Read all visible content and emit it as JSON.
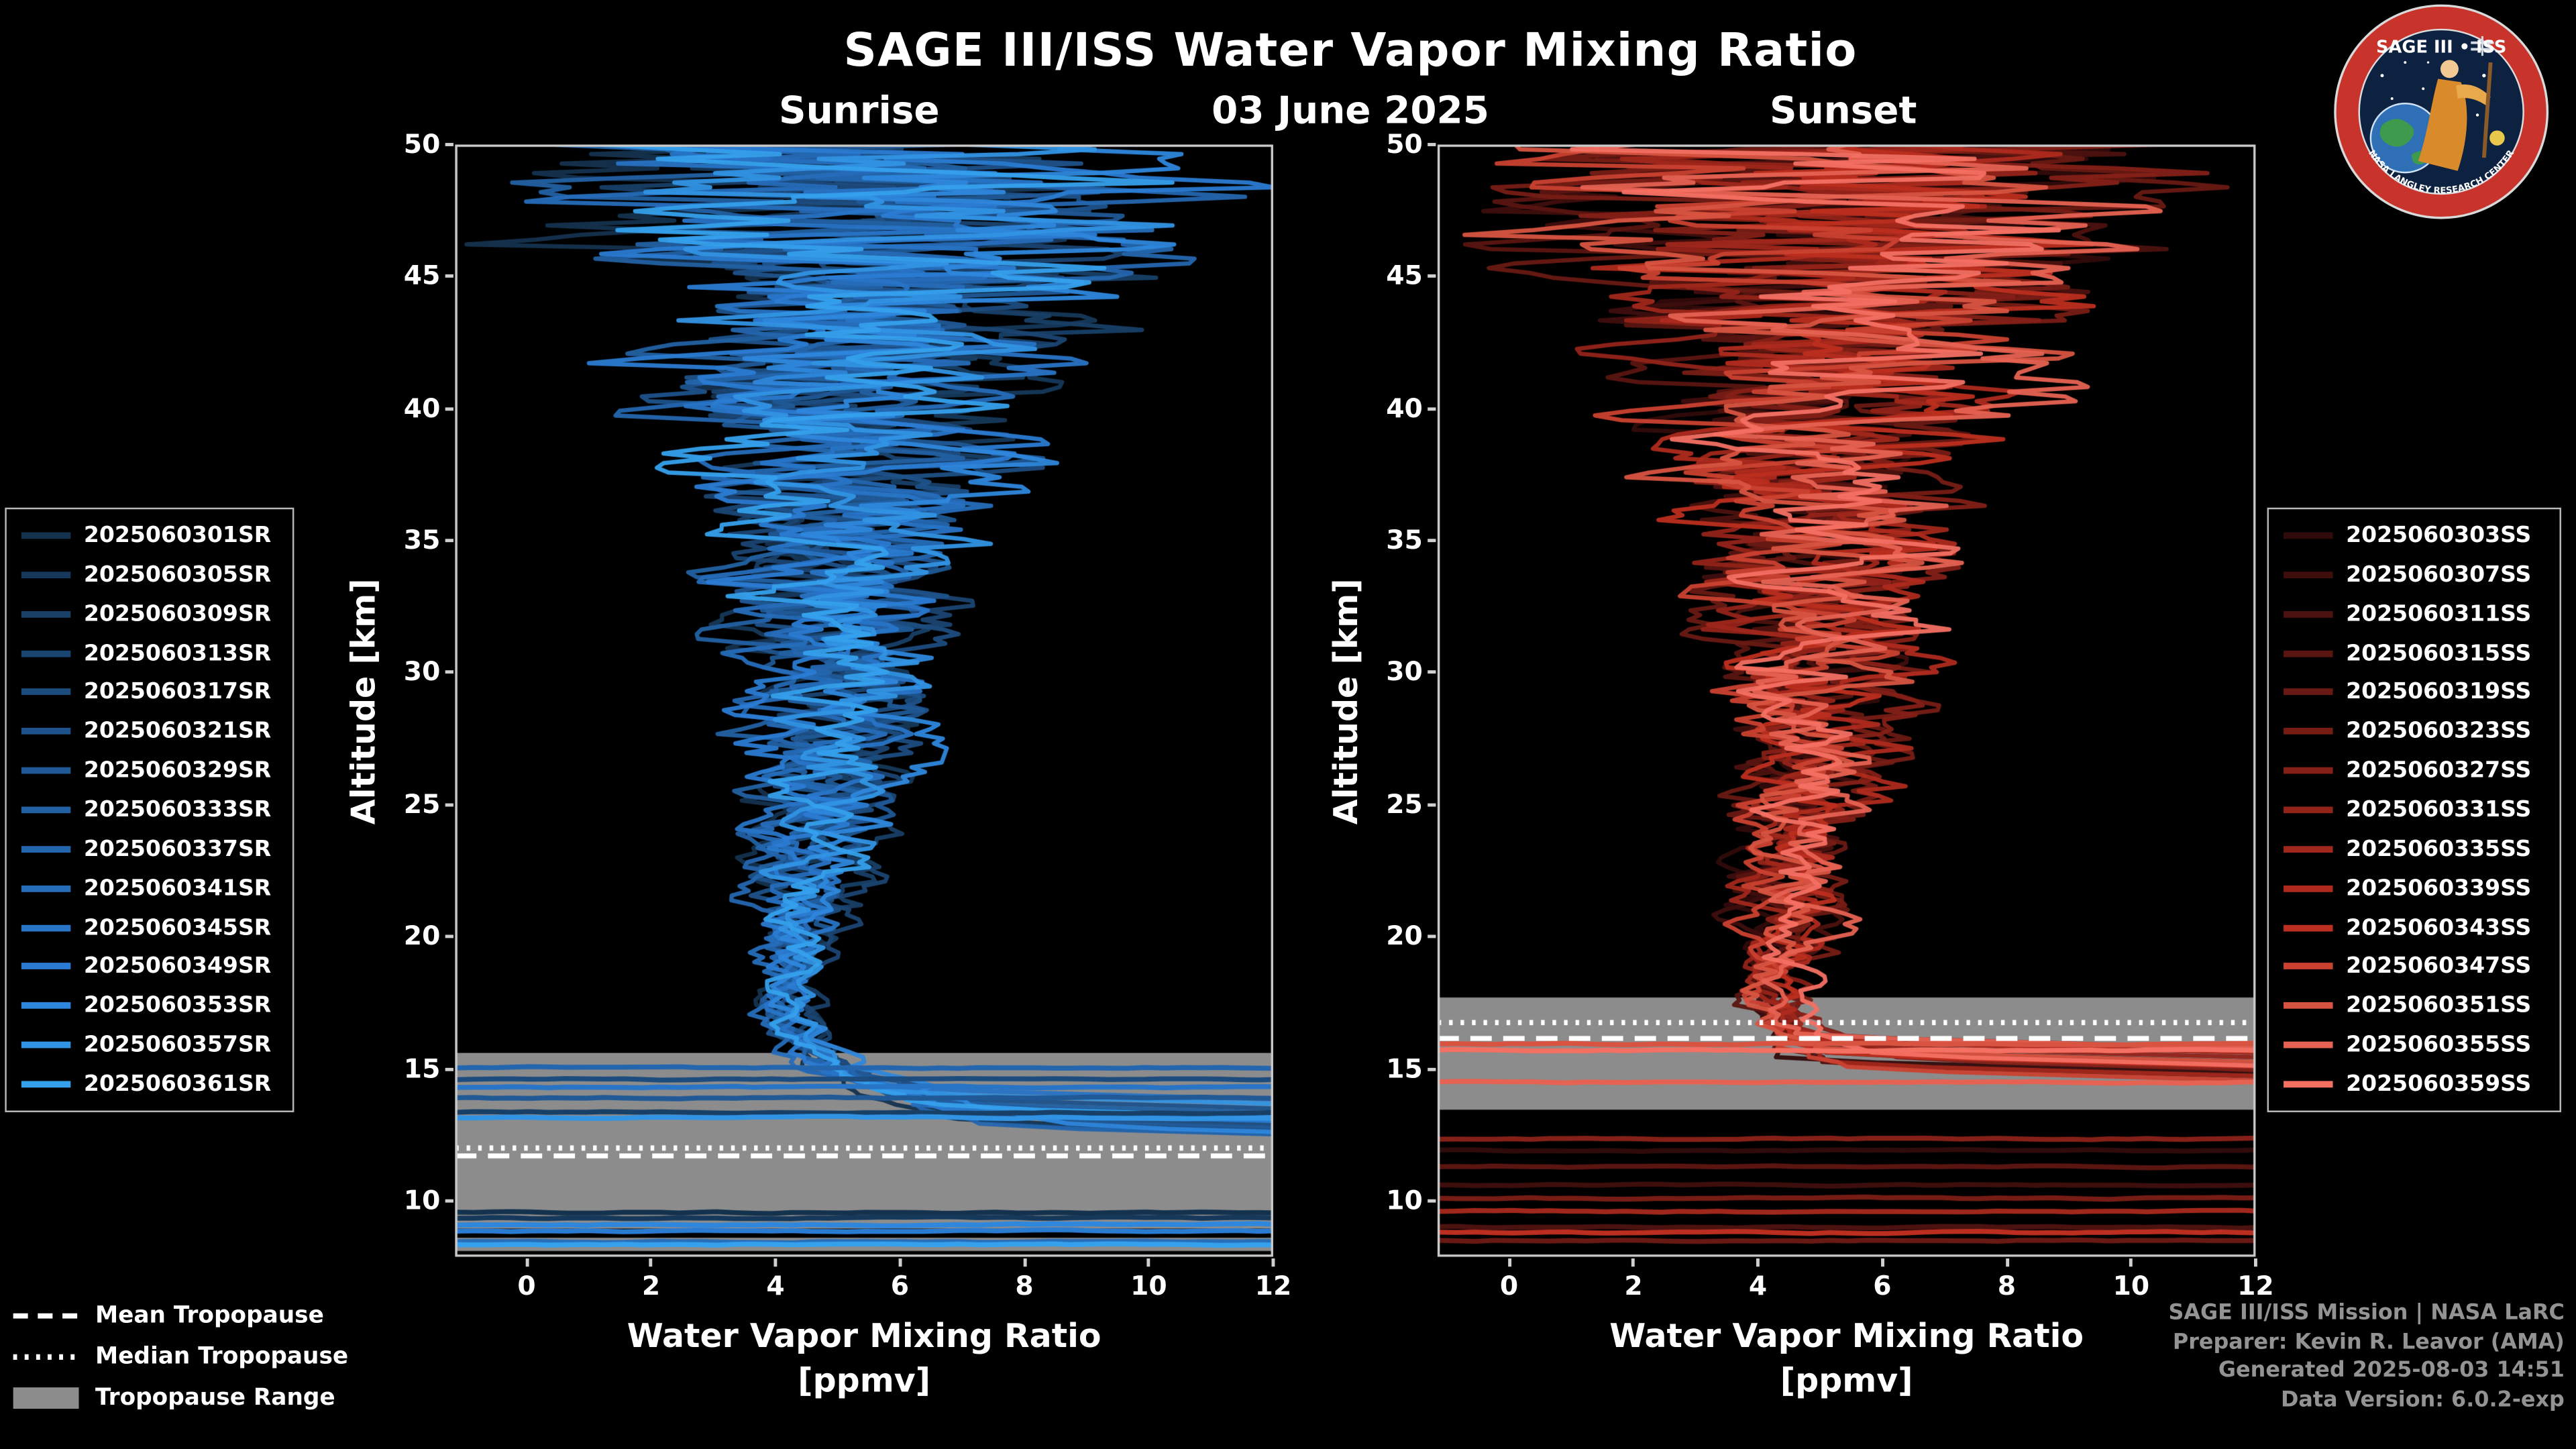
{
  "page": {
    "title": "SAGE III/ISS Water Vapor Mixing Ratio",
    "background": "#000000"
  },
  "header": {
    "sunrise_label": "Sunrise",
    "date_label": "03 June 2025",
    "sunset_label": "Sunset"
  },
  "tropopause_legend": {
    "mean_label": "Mean Tropopause",
    "median_label": "Median Tropopause",
    "range_label": "Tropopause Range",
    "range_color": "#8c8c8c"
  },
  "attribution": {
    "lines": [
      "SAGE III/ISS Mission | NASA LaRC",
      "Preparer: Kevin R. Leavor (AMA)",
      "Generated 2025-08-03 14:51",
      "Data Version: 6.0.2-exp"
    ],
    "color": "#939393"
  },
  "logo": {
    "title": "SAGE III • ISS",
    "ring_text": "NASA LANGLEY RESEARCH CENTER"
  },
  "chart_data": [
    {
      "type": "line",
      "title": "Sunrise",
      "ylabel": "Altitude [km]",
      "xlabel_line1": "Water Vapor Mixing Ratio",
      "xlabel_line2": "[ppmv]",
      "xlim": [
        -1.15,
        12.0
      ],
      "ylim": [
        7.88,
        50.0
      ],
      "xticks": [
        0,
        2,
        4,
        6,
        8,
        10,
        12
      ],
      "yticks": [
        10,
        15,
        20,
        25,
        30,
        35,
        40,
        45,
        50
      ],
      "grid": false,
      "legend_position": "outside-left",
      "mean_profile": {
        "alt": [
          12.8,
          14,
          15,
          16,
          17,
          18,
          20,
          24,
          28,
          32,
          36,
          40,
          45,
          50
        ],
        "ppmv": [
          8.0,
          6.0,
          5.0,
          4.5,
          4.25,
          4.2,
          4.4,
          4.7,
          4.9,
          5.0,
          5.1,
          5.2,
          5.3,
          5.3
        ]
      },
      "noise_amp": {
        "alt": [
          12.8,
          15,
          17,
          19,
          22,
          26,
          30,
          35,
          40,
          44,
          47,
          50
        ],
        "amp": [
          0.7,
          0.45,
          0.4,
          0.55,
          0.8,
          1.1,
          1.4,
          1.9,
          2.6,
          3.6,
          4.6,
          5.4
        ]
      },
      "tropopause": {
        "mean_alt": 11.7,
        "median_alt": 12.0,
        "band_color": "#8c8c8c",
        "bands": [
          [
            8.95,
            15.6
          ],
          [
            8.1,
            8.6
          ]
        ]
      },
      "series": [
        {
          "label": "2025060301SR",
          "color": "#14324e",
          "seed": 101,
          "min_alt": 13.0
        },
        {
          "label": "2025060305SR",
          "color": "#16385a",
          "seed": 202,
          "min_alt": 13.4
        },
        {
          "label": "2025060309SR",
          "color": "#183f66",
          "seed": 303,
          "min_alt": 12.9
        },
        {
          "label": "2025060313SR",
          "color": "#1a4572",
          "seed": 404,
          "min_alt": 13.6
        },
        {
          "label": "2025060317SR",
          "color": "#1c4c7e",
          "seed": 505,
          "min_alt": 13.2
        },
        {
          "label": "2025060321SR",
          "color": "#1e528a",
          "seed": 606,
          "min_alt": 14.0
        },
        {
          "label": "2025060329SR",
          "color": "#205996",
          "seed": 707,
          "min_alt": 13.1
        },
        {
          "label": "2025060333SR",
          "color": "#2260a2",
          "seed": 808,
          "min_alt": 13.8
        },
        {
          "label": "2025060337SR",
          "color": "#2466ae",
          "seed": 909,
          "min_alt": 12.8
        },
        {
          "label": "2025060341SR",
          "color": "#266dba",
          "seed": 1010,
          "min_alt": 13.5
        },
        {
          "label": "2025060345SR",
          "color": "#2874c6",
          "seed": 1111,
          "min_alt": 14.3
        },
        {
          "label": "2025060349SR",
          "color": "#2a7bd2",
          "seed": 1212,
          "min_alt": 13.3
        },
        {
          "label": "2025060353SR",
          "color": "#2e87dc",
          "seed": 1313,
          "min_alt": 12.9
        },
        {
          "label": "2025060357SR",
          "color": "#3193e4",
          "seed": 1414,
          "min_alt": 14.1
        },
        {
          "label": "2025060361SR",
          "color": "#35a0ec",
          "seed": 1515,
          "min_alt": 13.6
        }
      ],
      "clipped_lines": [
        {
          "series": 0,
          "alt": 9.55
        },
        {
          "series": 1,
          "alt": 9.35
        },
        {
          "series": 2,
          "alt": 13.35
        },
        {
          "series": 4,
          "alt": 14.6
        },
        {
          "series": 6,
          "alt": 13.9
        },
        {
          "series": 8,
          "alt": 15.05
        },
        {
          "series": 9,
          "alt": 8.45
        },
        {
          "series": 10,
          "alt": 14.3
        },
        {
          "series": 11,
          "alt": 8.85
        },
        {
          "series": 12,
          "alt": 9.1
        },
        {
          "series": 13,
          "alt": 13.15
        },
        {
          "series": 14,
          "alt": 8.35
        }
      ]
    },
    {
      "type": "line",
      "title": "Sunset",
      "ylabel": "Altitude [km]",
      "xlabel_line1": "Water Vapor Mixing Ratio",
      "xlabel_line2": "[ppmv]",
      "xlim": [
        -1.15,
        12.0
      ],
      "ylim": [
        7.88,
        50.0
      ],
      "xticks": [
        0,
        2,
        4,
        6,
        8,
        10,
        12
      ],
      "yticks": [
        10,
        15,
        20,
        25,
        30,
        35,
        40,
        45,
        50
      ],
      "grid": false,
      "legend_position": "outside-right",
      "mean_profile": {
        "alt": [
          15,
          16,
          17,
          18,
          20,
          24,
          28,
          32,
          36,
          40,
          45,
          50
        ],
        "ppmv": [
          5.6,
          4.8,
          4.4,
          4.3,
          4.5,
          4.7,
          4.9,
          5.0,
          5.1,
          5.2,
          5.3,
          5.3
        ]
      },
      "noise_amp": {
        "alt": [
          15,
          16.5,
          18,
          20,
          23,
          26,
          30,
          35,
          40,
          44,
          47,
          50
        ],
        "amp": [
          0.6,
          0.45,
          0.5,
          0.65,
          0.9,
          1.1,
          1.4,
          1.9,
          2.6,
          3.6,
          4.6,
          5.4
        ]
      },
      "tropopause": {
        "mean_alt": 16.15,
        "median_alt": 16.75,
        "band_color": "#8c8c8c",
        "bands": [
          [
            13.45,
            17.7
          ]
        ]
      },
      "series": [
        {
          "label": "2025060303SS",
          "color": "#300b0b",
          "seed": 2101,
          "min_alt": 15.3
        },
        {
          "label": "2025060307SS",
          "color": "#3e0e0d",
          "seed": 2202,
          "min_alt": 15.8
        },
        {
          "label": "2025060311SS",
          "color": "#4c120f",
          "seed": 2303,
          "min_alt": 15.1
        },
        {
          "label": "2025060315SS",
          "color": "#5a1511",
          "seed": 2404,
          "min_alt": 16.0
        },
        {
          "label": "2025060319SS",
          "color": "#681913",
          "seed": 2505,
          "min_alt": 15.5
        },
        {
          "label": "2025060323SS",
          "color": "#761c15",
          "seed": 2606,
          "min_alt": 16.2
        },
        {
          "label": "2025060327SS",
          "color": "#842017",
          "seed": 2707,
          "min_alt": 15.4
        },
        {
          "label": "2025060331SS",
          "color": "#922319",
          "seed": 2808,
          "min_alt": 15.9
        },
        {
          "label": "2025060335SS",
          "color": "#a0271b",
          "seed": 2909,
          "min_alt": 15.2
        },
        {
          "label": "2025060339SS",
          "color": "#ae2a1d",
          "seed": 3010,
          "min_alt": 16.1
        },
        {
          "label": "2025060343SS",
          "color": "#bc2e1f",
          "seed": 3111,
          "min_alt": 15.6
        },
        {
          "label": "2025060347SS",
          "color": "#ca4130",
          "seed": 3212,
          "min_alt": 15.0
        },
        {
          "label": "2025060351SS",
          "color": "#d85441",
          "seed": 3313,
          "min_alt": 15.8
        },
        {
          "label": "2025060355SS",
          "color": "#e66252",
          "seed": 3414,
          "min_alt": 16.3
        },
        {
          "label": "2025060359SS",
          "color": "#f47063",
          "seed": 3515,
          "min_alt": 15.5
        }
      ],
      "clipped_lines": [
        {
          "series": 0,
          "alt": 11.9
        },
        {
          "series": 1,
          "alt": 10.6
        },
        {
          "series": 2,
          "alt": 9.0
        },
        {
          "series": 3,
          "alt": 11.3
        },
        {
          "series": 4,
          "alt": 8.5
        },
        {
          "series": 5,
          "alt": 10.1
        },
        {
          "series": 6,
          "alt": 12.35
        },
        {
          "series": 8,
          "alt": 9.6
        },
        {
          "series": 10,
          "alt": 8.8
        },
        {
          "series": 12,
          "alt": 15.95
        },
        {
          "series": 13,
          "alt": 14.5
        },
        {
          "series": 14,
          "alt": 15.7
        }
      ]
    }
  ]
}
